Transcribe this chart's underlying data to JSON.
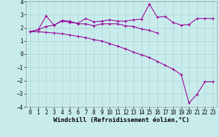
{
  "x": [
    0,
    1,
    2,
    3,
    4,
    5,
    6,
    7,
    8,
    9,
    10,
    11,
    12,
    13,
    14,
    15,
    16,
    17,
    18,
    19,
    20,
    21,
    22,
    23
  ],
  "line1": [
    1.7,
    1.85,
    2.9,
    2.2,
    2.5,
    2.4,
    2.35,
    2.7,
    2.45,
    2.5,
    2.6,
    2.5,
    2.5,
    2.6,
    2.65,
    3.8,
    2.8,
    2.85,
    2.4,
    2.2,
    2.25,
    2.7,
    2.7,
    2.7
  ],
  "line2": [
    1.7,
    1.85,
    2.1,
    2.2,
    2.55,
    2.5,
    2.3,
    2.3,
    2.15,
    2.3,
    2.3,
    2.3,
    2.15,
    2.1,
    1.9,
    1.8,
    1.6,
    null,
    null,
    null,
    null,
    null,
    null,
    null
  ],
  "line3": [
    1.7,
    1.7,
    1.65,
    1.6,
    1.55,
    1.45,
    1.35,
    1.25,
    1.1,
    1.0,
    0.8,
    0.6,
    0.4,
    0.15,
    -0.05,
    -0.25,
    -0.55,
    -0.85,
    -1.15,
    -1.55,
    -3.7,
    -3.05,
    -2.1,
    -2.1
  ],
  "background_color": "#c8ecec",
  "grid_color": "#b0d8d8",
  "line_color": "#990099",
  "ylim": [
    -4,
    4
  ],
  "yticks": [
    -4,
    -3,
    -2,
    -1,
    0,
    1,
    2,
    3,
    4
  ],
  "xticks": [
    0,
    1,
    2,
    3,
    4,
    5,
    6,
    7,
    8,
    9,
    10,
    11,
    12,
    13,
    14,
    15,
    16,
    17,
    18,
    19,
    20,
    21,
    22,
    23
  ],
  "xlabel": "Windchill (Refroidissement éolien,°C)",
  "xlabel_fontsize": 6.5,
  "tick_fontsize": 5.5,
  "line_width": 0.8,
  "markersize": 3.5
}
